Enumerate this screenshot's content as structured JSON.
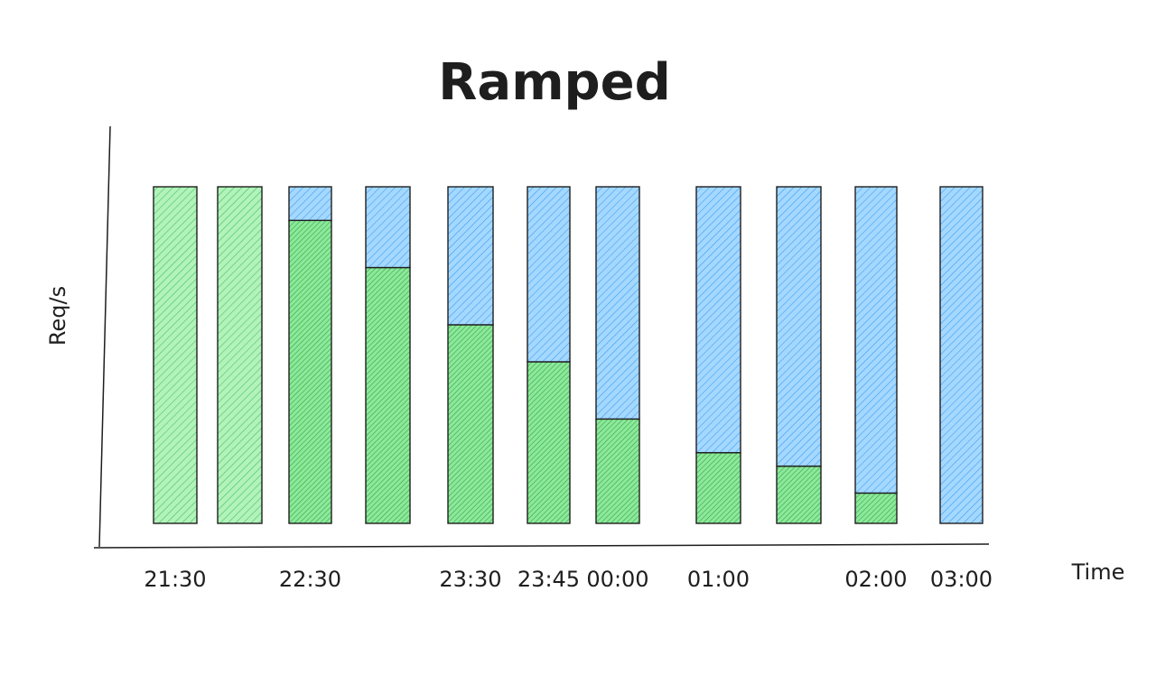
{
  "chart_data": {
    "type": "bar",
    "stacked": true,
    "title": "Ramped",
    "xlabel": "Time",
    "ylabel": "Req/s",
    "ylim": [
      0,
      100
    ],
    "grid": false,
    "legend": "none",
    "categories": [
      "b1",
      "b2",
      "b3",
      "b4",
      "b5",
      "b6",
      "b7",
      "b8",
      "b9",
      "b10",
      "b11"
    ],
    "series": [
      {
        "key": "green",
        "color": "#69db7c",
        "fill": "#b2f2bb",
        "values": [
          100,
          100,
          90,
          76,
          59,
          48,
          31,
          21,
          17,
          9,
          0
        ]
      },
      {
        "key": "blue",
        "color": "#4dabf7",
        "fill": "#a5d8ff",
        "values": [
          0,
          0,
          10,
          24,
          41,
          52,
          69,
          79,
          83,
          91,
          100
        ]
      }
    ],
    "tick_labels": [
      {
        "text": "21:30",
        "bar": 0
      },
      {
        "text": "22:30",
        "bar": 2
      },
      {
        "text": "23:30",
        "bar": 4
      },
      {
        "text": "23:45",
        "bar": 5
      },
      {
        "text": "00:00",
        "bar": 6
      },
      {
        "text": "01:00",
        "bar": 7
      },
      {
        "text": "02:00",
        "bar": 9
      },
      {
        "text": "03:00",
        "bar": 10
      }
    ]
  }
}
